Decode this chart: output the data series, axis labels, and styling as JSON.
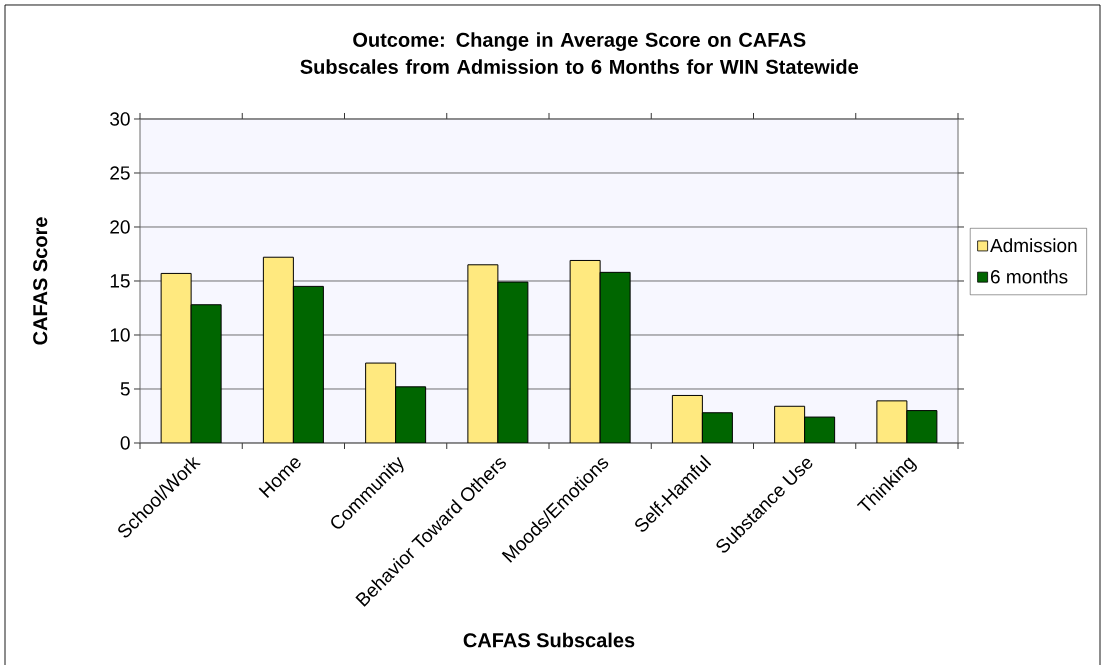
{
  "chart_data": {
    "type": "bar",
    "title": "Outcome: Change in Average Score on CAFAS Subscales from Admission to 6 Months for WIN Statewide",
    "xlabel": "CAFAS Subscales",
    "ylabel": "CAFAS Score",
    "categories": [
      "School/Work",
      "Home",
      "Community",
      "Behavior Toward Others",
      "Moods/Emotions",
      "Self-Hamful",
      "Substance Use",
      "Thinking"
    ],
    "series": [
      {
        "name": "Admission",
        "color": "#ffe97f",
        "values": [
          15.7,
          17.2,
          7.4,
          16.5,
          16.9,
          4.4,
          3.4,
          3.9
        ]
      },
      {
        "name": "6 months",
        "color": "#006600",
        "values": [
          12.8,
          14.5,
          5.2,
          14.9,
          15.8,
          2.8,
          2.4,
          3.0
        ]
      }
    ],
    "ylim": [
      0,
      30
    ],
    "yticks": [
      0,
      5,
      10,
      15,
      20,
      25,
      30
    ],
    "grid": "y",
    "legend": "right"
  }
}
